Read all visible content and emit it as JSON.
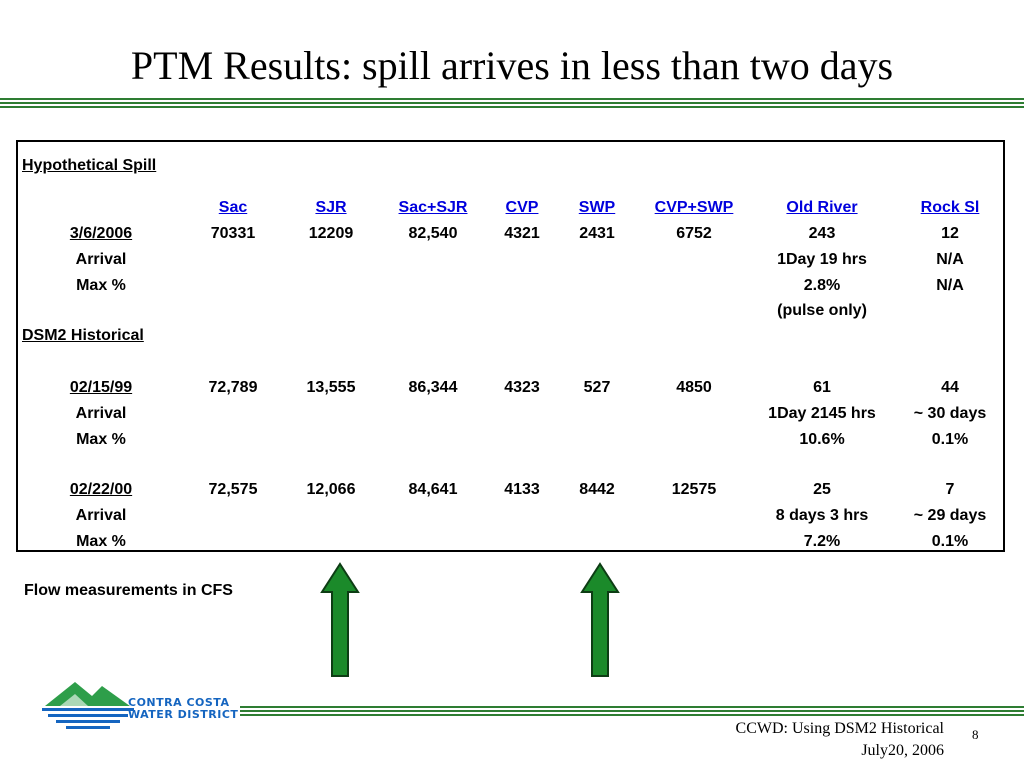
{
  "title": "PTM Results: spill arrives in less than two days",
  "sections": {
    "hypothetical": "Hypothetical Spill",
    "historical": "DSM2 Historical"
  },
  "columns": [
    "Sac",
    "SJR",
    "Sac+SJR",
    "CVP",
    "SWP",
    "CVP+SWP",
    "Old River",
    "Rock Sl"
  ],
  "rows": {
    "r1": {
      "label": "3/6/2006",
      "values": [
        "70331",
        "12209",
        "82,540",
        "4321",
        "2431",
        "6752",
        "243",
        "12"
      ]
    },
    "r1_arrival": {
      "label": "Arrival",
      "old_river": "1Day 19 hrs",
      "rock_sl": "N/A"
    },
    "r1_max": {
      "label": "Max %",
      "old_river": "2.8%",
      "rock_sl": "N/A"
    },
    "r1_note": "(pulse only)",
    "r2": {
      "label": "02/15/99",
      "values": [
        "72,789",
        "13,555",
        "86,344",
        "4323",
        "527",
        "4850",
        "61",
        "44"
      ]
    },
    "r2_arrival": {
      "label": "Arrival",
      "old_river": "1Day 2145 hrs",
      "rock_sl": "~ 30 days"
    },
    "r2_max": {
      "label": "Max %",
      "old_river": "10.6%",
      "rock_sl": "0.1%"
    },
    "r3": {
      "label": "02/22/00",
      "values": [
        "72,575",
        "12,066",
        "84,641",
        "4133",
        "8442",
        "12575",
        "25",
        "7"
      ]
    },
    "r3_arrival": {
      "label": "Arrival",
      "old_river": "8 days 3 hrs",
      "rock_sl": "~ 29 days"
    },
    "r3_max": {
      "label": "Max %",
      "old_river": "7.2%",
      "rock_sl": "0.1%"
    }
  },
  "note": "Flow measurements in CFS",
  "logo": {
    "line1": "CONTRA COSTA",
    "line2": "WATER DISTRICT"
  },
  "footer": {
    "line1": "CCWD: Using DSM2 Historical",
    "line2": "July20, 2006",
    "page": "8"
  },
  "colors": {
    "accent_green": "#2e7d32",
    "arrow_green": "#1b8a2a",
    "header_blue": "#0000dd",
    "logo_blue": "#1565c0"
  }
}
